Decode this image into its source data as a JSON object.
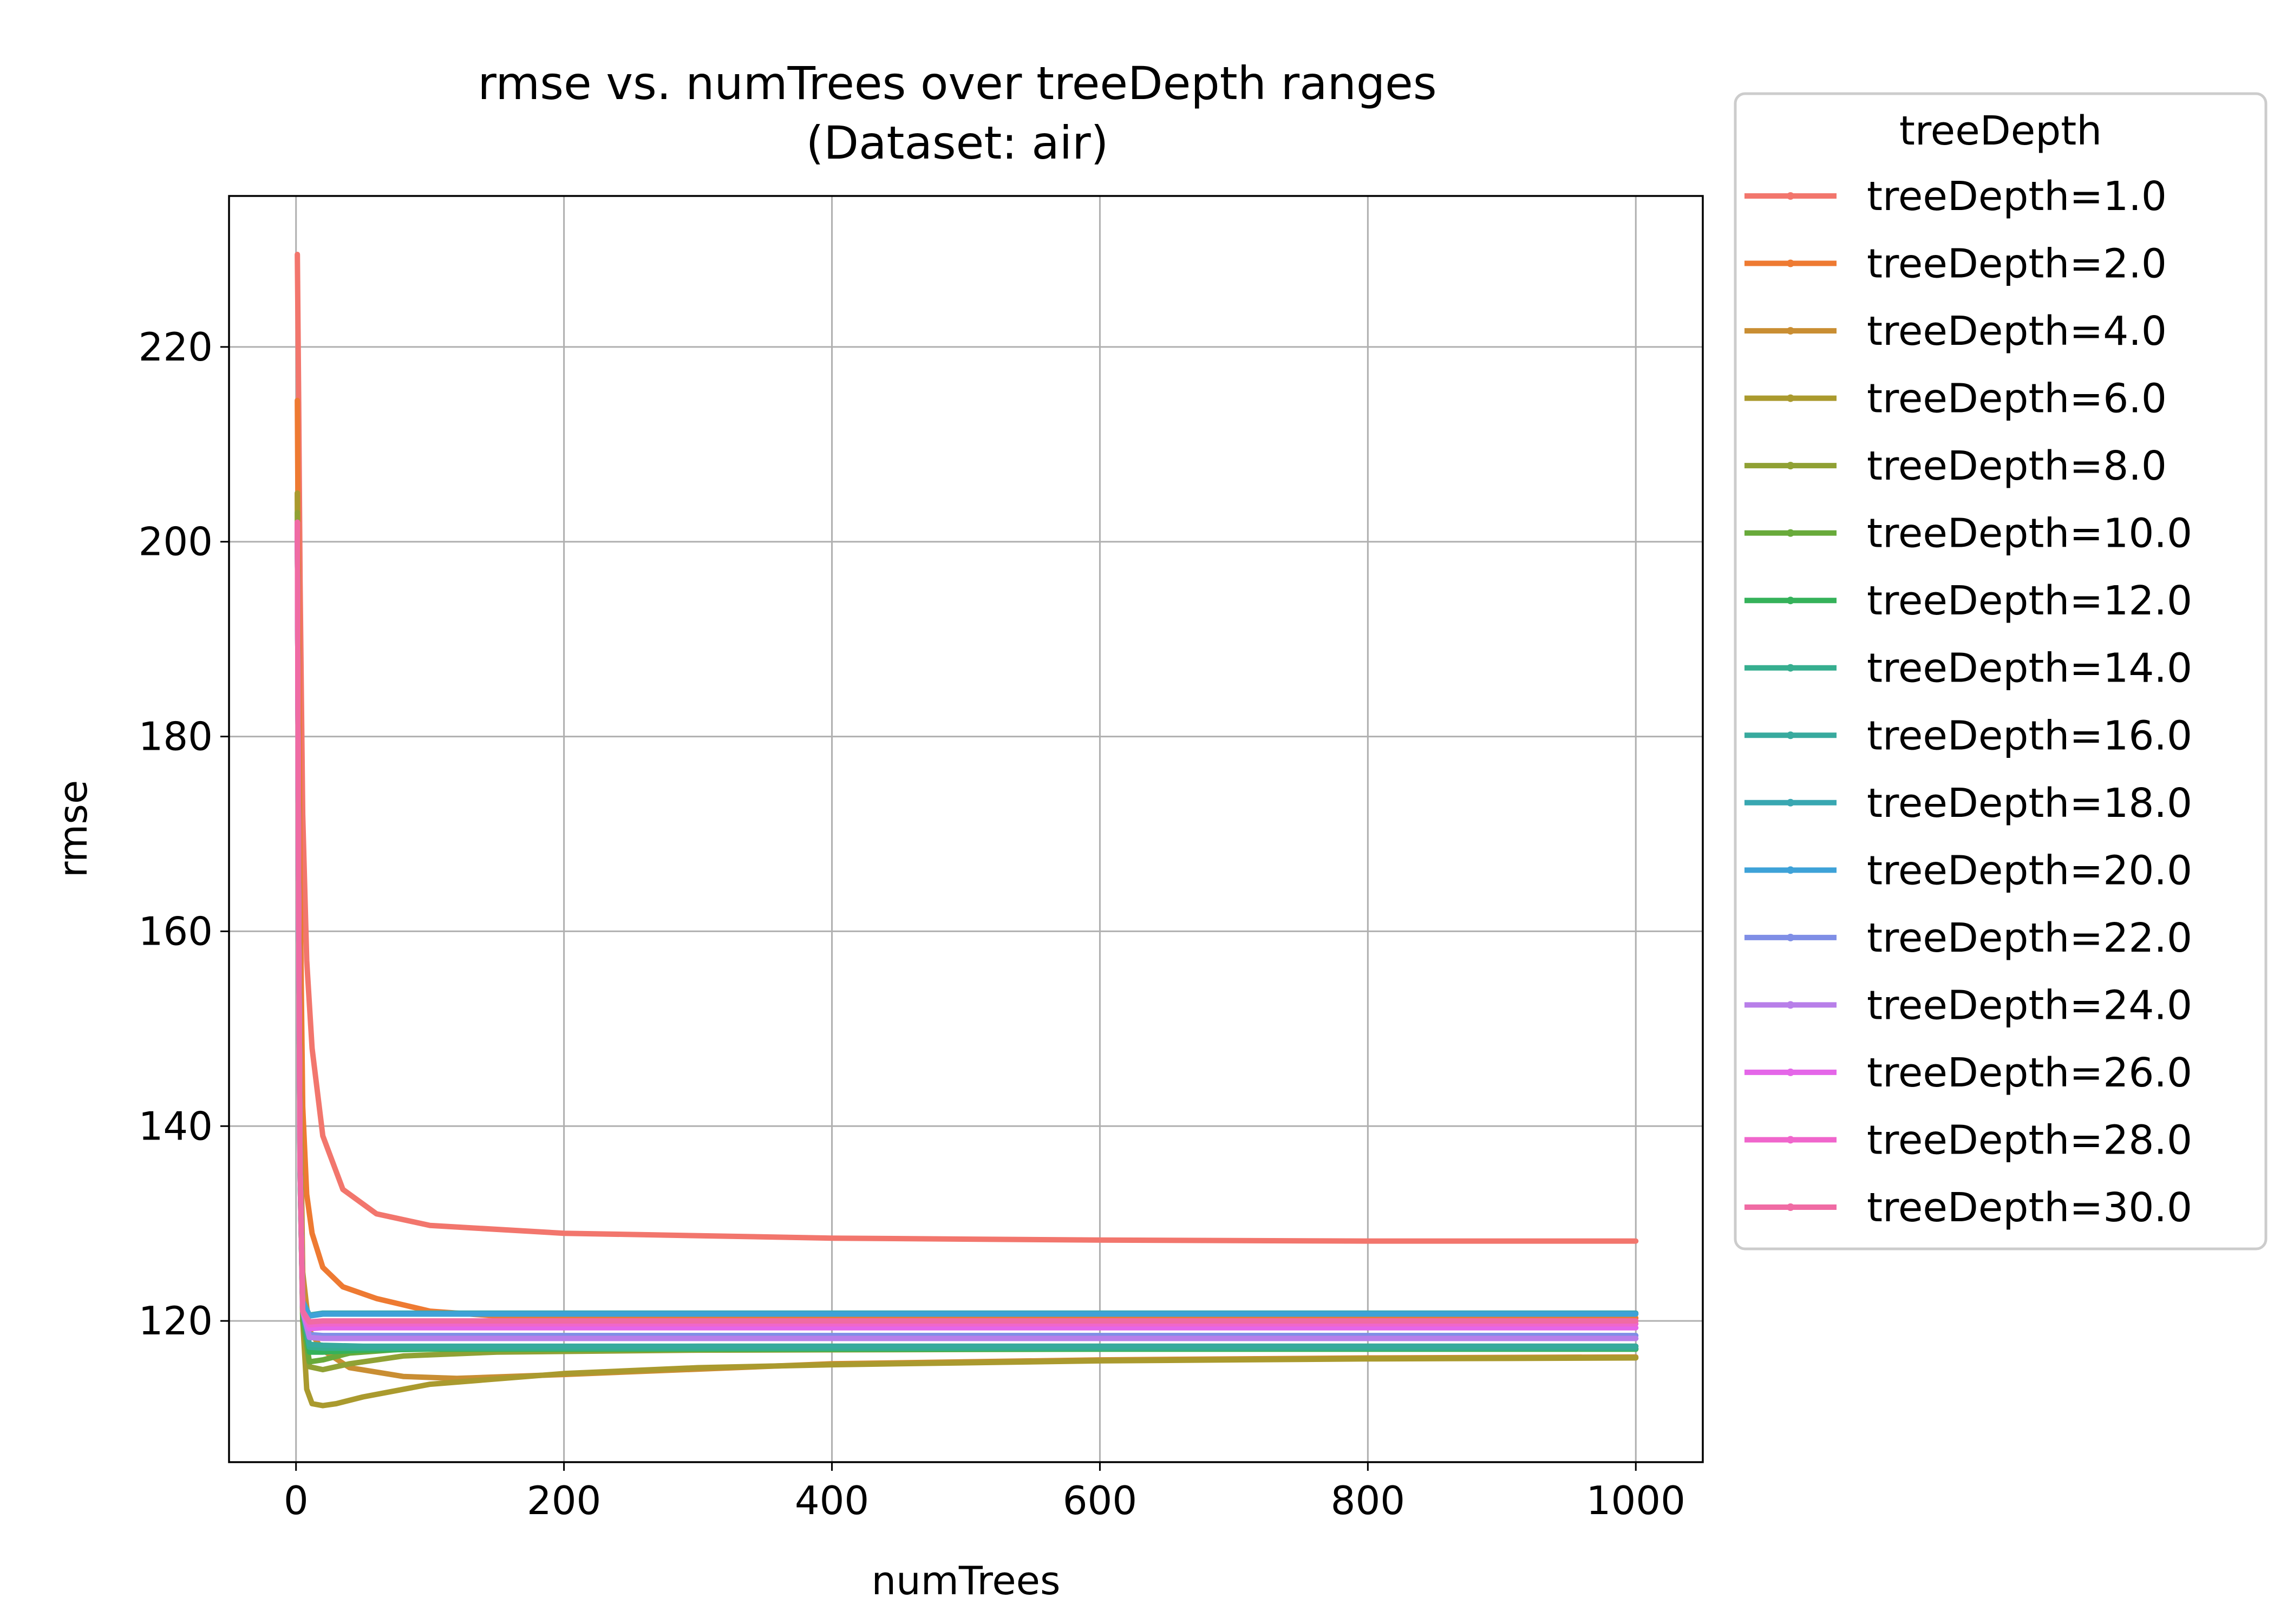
{
  "chart_data": {
    "type": "line",
    "title": "rmse vs. numTrees over treeDepth ranges",
    "subtitle": "(Dataset: air)",
    "xlabel": "numTrees",
    "ylabel": "rmse",
    "xlim": [
      -50,
      1050
    ],
    "ylim": [
      105.5,
      235.5
    ],
    "xticks": [
      0,
      200,
      400,
      600,
      800,
      1000
    ],
    "yticks": [
      120,
      140,
      160,
      180,
      200,
      220
    ],
    "grid": true,
    "legend": {
      "title": "treeDepth",
      "placement": "outside-right"
    },
    "series": [
      {
        "name": "treeDepth=1.0",
        "color": "#f2766d",
        "x": [
          1,
          2,
          3,
          5,
          8,
          12,
          20,
          35,
          60,
          100,
          200,
          400,
          600,
          800,
          1000
        ],
        "y": [
          229.5,
          214,
          196,
          172,
          157,
          148,
          139,
          133.5,
          131,
          129.8,
          129,
          128.5,
          128.3,
          128.2,
          128.2
        ]
      },
      {
        "name": "treeDepth=2.0",
        "color": "#ee7a32",
        "x": [
          1,
          2,
          3,
          5,
          8,
          12,
          20,
          35,
          60,
          100,
          150,
          1000
        ],
        "y": [
          214.5,
          190,
          165,
          142,
          133,
          129,
          125.5,
          123.5,
          122.3,
          121,
          120.5,
          120.3
        ]
      },
      {
        "name": "treeDepth=4.0",
        "color": "#c98e33",
        "x": [
          1,
          2,
          3,
          5,
          10,
          20,
          40,
          80,
          120,
          200,
          400,
          600,
          800,
          1000
        ],
        "y": [
          205,
          170,
          145,
          125,
          119,
          117,
          115.2,
          114.3,
          114.1,
          114.5,
          115.6,
          116,
          116.2,
          116.3
        ]
      },
      {
        "name": "treeDepth=6.0",
        "color": "#aa9a2e",
        "x": [
          1,
          2,
          3,
          5,
          8,
          12,
          20,
          30,
          50,
          100,
          200,
          300,
          400,
          600,
          800,
          1000
        ],
        "y": [
          205,
          168,
          140,
          120,
          113,
          111.5,
          111.3,
          111.5,
          112.2,
          113.5,
          114.6,
          115.2,
          115.5,
          115.9,
          116.1,
          116.2
        ]
      },
      {
        "name": "treeDepth=8.0",
        "color": "#90a134",
        "x": [
          1,
          2,
          3,
          5,
          10,
          20,
          40,
          80,
          150,
          300,
          600,
          1000
        ],
        "y": [
          203,
          165,
          138,
          121,
          115.3,
          115,
          115.6,
          116.4,
          116.8,
          117,
          117.1,
          117.1
        ]
      },
      {
        "name": "treeDepth=10.0",
        "color": "#68aa3a",
        "x": [
          1,
          2,
          3,
          5,
          10,
          20,
          40,
          80,
          150,
          300,
          1000
        ],
        "y": [
          202,
          163,
          136,
          120,
          115.8,
          116,
          116.7,
          117.1,
          117.3,
          117.4,
          117.4
        ]
      },
      {
        "name": "treeDepth=12.0",
        "color": "#35b25a",
        "x": [
          1,
          2,
          3,
          5,
          10,
          20,
          50,
          100,
          1000
        ],
        "y": [
          202,
          162,
          135,
          121,
          116.8,
          116.8,
          117,
          117.1,
          117.1
        ]
      },
      {
        "name": "treeDepth=14.0",
        "color": "#36ae8f",
        "x": [
          1,
          2,
          3,
          5,
          10,
          20,
          50,
          1000
        ],
        "y": [
          202,
          162,
          135,
          121,
          117.3,
          117.2,
          117.2,
          117.2
        ]
      },
      {
        "name": "treeDepth=16.0",
        "color": "#38aa9e",
        "x": [
          1,
          2,
          3,
          5,
          10,
          20,
          50,
          1000
        ],
        "y": [
          202,
          162,
          135,
          121,
          117.6,
          117.5,
          117.4,
          117.4
        ]
      },
      {
        "name": "treeDepth=18.0",
        "color": "#39a7b1",
        "x": [
          1,
          2,
          3,
          5,
          10,
          20,
          50,
          1000
        ],
        "y": [
          202,
          162,
          136,
          122,
          120.6,
          120.8,
          120.8,
          120.8
        ]
      },
      {
        "name": "treeDepth=20.0",
        "color": "#3ea2d8",
        "x": [
          1,
          2,
          3,
          5,
          10,
          20,
          50,
          1000
        ],
        "y": [
          202,
          162,
          136,
          122,
          120.5,
          120.7,
          120.7,
          120.7
        ]
      },
      {
        "name": "treeDepth=22.0",
        "color": "#7f8ee6",
        "x": [
          1,
          2,
          3,
          5,
          10,
          20,
          50,
          1000
        ],
        "y": [
          202,
          162,
          136,
          121,
          118.6,
          118.5,
          118.5,
          118.5
        ]
      },
      {
        "name": "treeDepth=24.0",
        "color": "#b87fe9",
        "x": [
          1,
          2,
          3,
          5,
          10,
          20,
          50,
          1000
        ],
        "y": [
          202,
          162,
          136,
          121,
          118.3,
          118.2,
          118.2,
          118.2
        ]
      },
      {
        "name": "treeDepth=26.0",
        "color": "#e466e8",
        "x": [
          1,
          2,
          3,
          5,
          10,
          20,
          50,
          1000
        ],
        "y": [
          202,
          162,
          136,
          121,
          119.2,
          119.3,
          119.3,
          119.3
        ]
      },
      {
        "name": "treeDepth=28.0",
        "color": "#f066cc",
        "x": [
          1,
          2,
          3,
          5,
          10,
          20,
          50,
          1000
        ],
        "y": [
          202,
          162,
          136,
          121,
          119.6,
          119.7,
          119.7,
          119.7
        ]
      },
      {
        "name": "treeDepth=30.0",
        "color": "#f06ba4",
        "x": [
          1,
          2,
          3,
          5,
          10,
          20,
          50,
          1000
        ],
        "y": [
          202,
          162,
          136,
          121,
          119.9,
          120,
          120,
          120
        ]
      }
    ]
  }
}
